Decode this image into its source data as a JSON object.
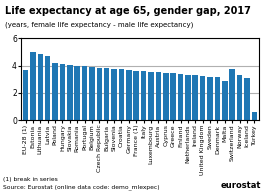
{
  "chart_data": {
    "type": "bar",
    "title": "Life expectancy at age 65, gender gap, 2017",
    "subtitle": "(years, female life expectancy - male life expectancy)",
    "categories": [
      "EU-28 (1)",
      "Estonia",
      "Lithuania",
      "Latvia",
      "Poland",
      "Hungary",
      "Slovakia",
      "Romania",
      "Portugal",
      "Belgium",
      "Czech Republic",
      "Bulgaria",
      "Slovenia",
      "Croatia",
      "Germany",
      "France (1)",
      "Italy",
      "Luxembourg",
      "Austria",
      "Cyprus",
      "Greece",
      "Finland",
      "Netherlands",
      "Ireland",
      "United Kingdom",
      "Sweden",
      "Denmark",
      "Malta",
      "Switzerland",
      "Norway",
      "Iceland",
      "Turkey"
    ],
    "values": [
      3.7,
      5.0,
      4.85,
      4.7,
      4.2,
      4.1,
      4.05,
      4.0,
      3.95,
      3.88,
      3.83,
      3.8,
      3.75,
      3.72,
      3.65,
      3.62,
      3.6,
      3.55,
      3.52,
      3.48,
      3.45,
      3.42,
      3.3,
      3.28,
      3.22,
      3.2,
      3.18,
      2.85,
      3.72,
      3.3,
      3.12,
      0.58
    ],
    "ylim": [
      0,
      6
    ],
    "yticks": [
      0,
      2,
      4,
      6
    ],
    "grid": true,
    "annotations": [
      "(1) break in series",
      "Source: Eurostat (online data code: demo_mlexpec)",
      "eurostat"
    ]
  }
}
